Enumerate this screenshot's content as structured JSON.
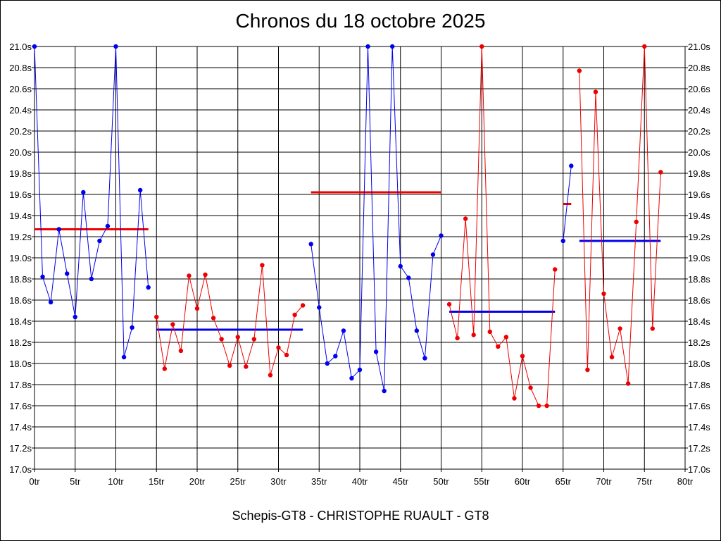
{
  "chart_data": {
    "type": "line",
    "title": "Chronos du 18 octobre 2025",
    "subtitle": "Schepis-GT8 - CHRISTOPHE RUAULT - GT8",
    "ylim": [
      17.0,
      21.0
    ],
    "xlim": [
      0,
      80
    ],
    "y_ticks": [
      "17.0s",
      "17.2s",
      "17.4s",
      "17.6s",
      "17.8s",
      "18.0s",
      "18.2s",
      "18.4s",
      "18.6s",
      "18.8s",
      "19.0s",
      "19.2s",
      "19.4s",
      "19.6s",
      "19.8s",
      "20.0s",
      "20.2s",
      "20.4s",
      "20.6s",
      "20.8s",
      "21.0s"
    ],
    "x_ticks": [
      "0tr",
      "5tr",
      "10tr",
      "15tr",
      "20tr",
      "25tr",
      "30tr",
      "35tr",
      "40tr",
      "45tr",
      "50tr",
      "55tr",
      "60tr",
      "65tr",
      "70tr",
      "75tr",
      "80tr"
    ],
    "grid": true,
    "series": [
      {
        "color": "#0000ee",
        "x": [
          0,
          1,
          2,
          3,
          4,
          5,
          6,
          7,
          8,
          9,
          10,
          11,
          12,
          13,
          14
        ],
        "y": [
          21.0,
          18.82,
          18.58,
          19.27,
          18.85,
          18.44,
          19.62,
          18.8,
          19.16,
          19.3,
          21.0,
          18.06,
          18.34,
          19.64,
          18.72
        ]
      },
      {
        "color": "#ee0000",
        "x": [
          15,
          16,
          17,
          18,
          19,
          20,
          21,
          22,
          23,
          24,
          25,
          26,
          27,
          28,
          29,
          30,
          31,
          32,
          33
        ],
        "y": [
          18.44,
          17.95,
          18.37,
          18.12,
          18.83,
          18.52,
          18.84,
          18.43,
          18.23,
          17.98,
          18.25,
          17.97,
          18.23,
          18.93,
          17.89,
          18.15,
          18.08,
          18.46,
          18.55
        ]
      },
      {
        "color": "#0000ee",
        "x": [
          34,
          35,
          36,
          37,
          38,
          39,
          40,
          41,
          42,
          43,
          44,
          45,
          46,
          47,
          48,
          49,
          50
        ],
        "y": [
          19.13,
          18.53,
          18.0,
          18.07,
          18.31,
          17.86,
          17.94,
          21.0,
          18.11,
          17.74,
          21.0,
          18.92,
          18.81,
          18.31,
          18.05,
          19.03,
          19.21
        ]
      },
      {
        "color": "#ee0000",
        "x": [
          51,
          52,
          53,
          54,
          55,
          56,
          57,
          58,
          59,
          60,
          61,
          62,
          63,
          64
        ],
        "y": [
          18.56,
          18.24,
          19.37,
          18.27,
          21.0,
          18.3,
          18.16,
          18.25,
          17.67,
          18.07,
          17.77,
          17.6,
          17.6,
          18.89
        ]
      },
      {
        "color": "#0000ee",
        "x": [
          65,
          66
        ],
        "y": [
          19.16,
          19.87
        ]
      },
      {
        "color": "#ee0000",
        "x": [
          67,
          68,
          69,
          70,
          71,
          72,
          73,
          74,
          75,
          76,
          77
        ],
        "y": [
          20.77,
          17.94,
          20.57,
          18.66,
          18.06,
          18.33,
          17.81,
          19.34,
          21.0,
          18.33,
          19.81
        ]
      }
    ],
    "averages": [
      {
        "color": "#ee0000",
        "x_from": 0,
        "x_to": 14,
        "value": 19.27
      },
      {
        "color": "#0000ee",
        "x_from": 15,
        "x_to": 33,
        "value": 18.32
      },
      {
        "color": "#ee0000",
        "x_from": 34,
        "x_to": 50,
        "value": 19.62
      },
      {
        "color": "#0000ee",
        "x_from": 51,
        "x_to": 64,
        "value": 18.49
      },
      {
        "color": "#ee0000",
        "x_from": 65,
        "x_to": 66,
        "value": 19.51
      },
      {
        "color": "#0000ee",
        "x_from": 67,
        "x_to": 77,
        "value": 19.16
      }
    ]
  }
}
